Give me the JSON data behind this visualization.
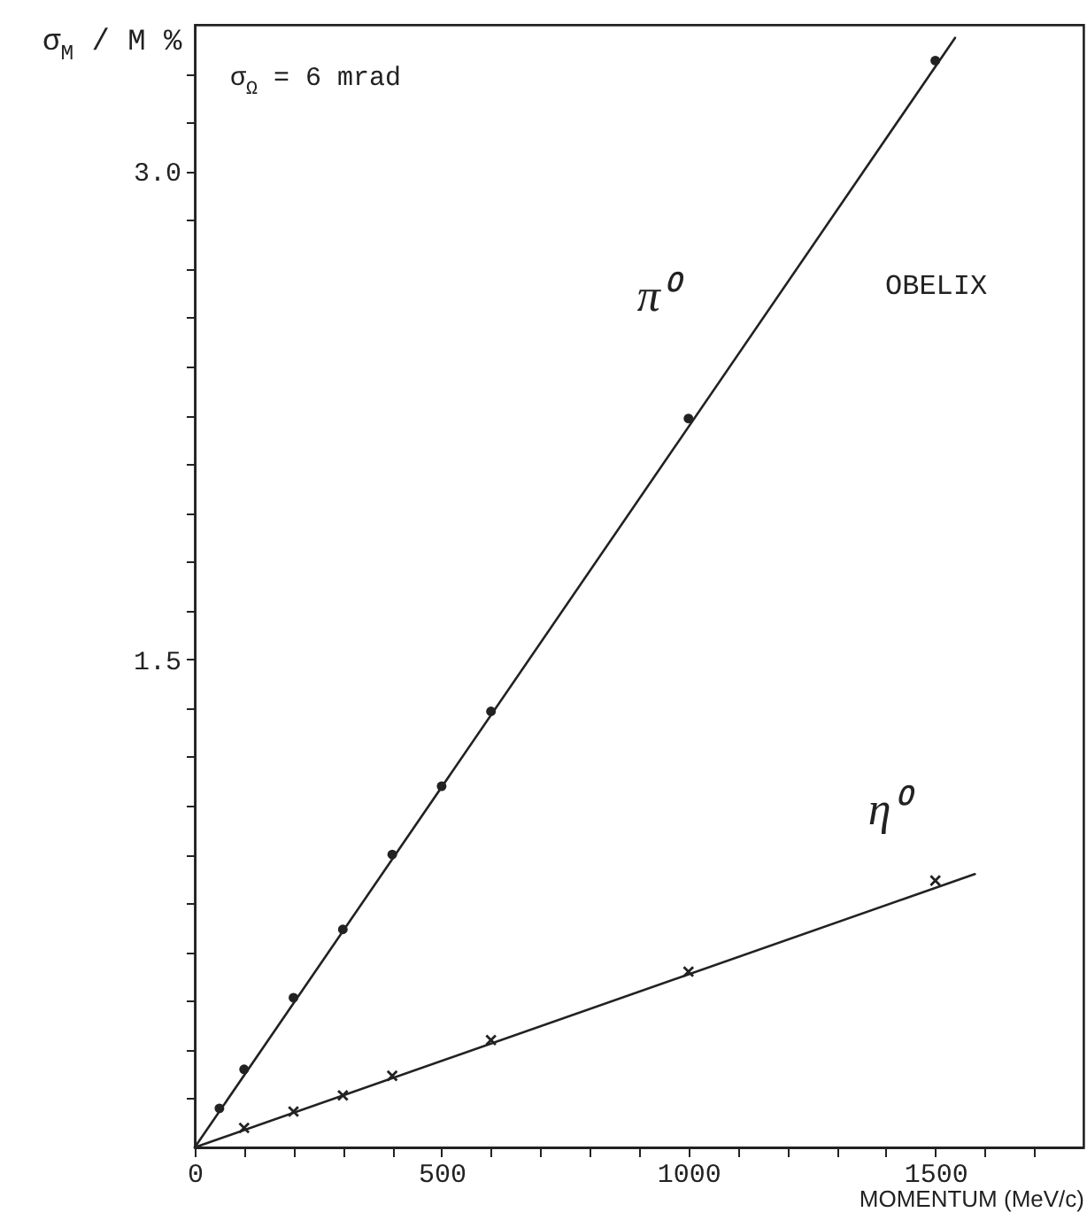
{
  "chart_data": {
    "type": "scatter",
    "xlabel": "MOMENTUM (MeV/c)",
    "ylabel": "σ$_{M}$ / M %",
    "annotations": [
      "σ$_{Ω}$ = 6 mrad",
      "OBELIX"
    ],
    "xlim": [
      0,
      1800
    ],
    "ylim": [
      0,
      3.45
    ],
    "xticks": [
      0,
      {
        "value": 100,
        "label": null
      },
      {
        "value": 200,
        "label": null
      },
      {
        "value": 300,
        "label": null
      },
      {
        "value": 400,
        "label": null
      },
      500,
      {
        "value": 600,
        "label": null
      },
      {
        "value": 700,
        "label": null
      },
      {
        "value": 800,
        "label": null
      },
      {
        "value": 900,
        "label": null
      },
      1000,
      {
        "value": 1100,
        "label": null
      },
      {
        "value": 1200,
        "label": null
      },
      {
        "value": 1300,
        "label": null
      },
      {
        "value": 1400,
        "label": null
      },
      1500,
      {
        "value": 1600,
        "label": null
      },
      {
        "value": 1700,
        "label": null
      }
    ],
    "yticks": [
      {
        "value": 0.15,
        "label": null
      },
      {
        "value": 0.3,
        "label": null
      },
      {
        "value": 0.45,
        "label": null
      },
      {
        "value": 0.6,
        "label": null
      },
      {
        "value": 0.75,
        "label": null
      },
      {
        "value": 0.9,
        "label": null
      },
      {
        "value": 1.05,
        "label": null
      },
      {
        "value": 1.2,
        "label": null
      },
      {
        "value": 1.35,
        "label": null
      },
      1.5,
      {
        "value": 1.65,
        "label": null
      },
      {
        "value": 1.8,
        "label": null
      },
      {
        "value": 1.95,
        "label": null
      },
      {
        "value": 2.1,
        "label": null
      },
      {
        "value": 2.25,
        "label": null
      },
      {
        "value": 2.4,
        "label": null
      },
      {
        "value": 2.55,
        "label": null
      },
      {
        "value": 2.7,
        "label": null
      },
      {
        "value": 2.85,
        "label": null
      },
      {
        "value": 3.0,
        "label": "3.0"
      },
      {
        "value": 3.15,
        "label": null
      },
      {
        "value": 3.3,
        "label": null
      }
    ],
    "grid": false,
    "series": [
      {
        "type": "line",
        "color": "#222222",
        "line_style": "solid",
        "x": [
          0,
          1540
        ],
        "values": [
          0,
          3.41
        ]
      },
      {
        "type": "line",
        "color": "#222222",
        "line_style": "solid",
        "x": [
          0,
          1580
        ],
        "values": [
          0,
          0.84
        ]
      },
      {
        "name": "π⁰",
        "marker": "circle",
        "color": "#222222",
        "x": [
          50,
          100,
          200,
          300,
          400,
          500,
          600,
          1000,
          1500
        ],
        "values": [
          0.12,
          0.24,
          0.46,
          0.67,
          0.9,
          1.11,
          1.34,
          2.24,
          3.34
        ]
      },
      {
        "name": "η⁰",
        "marker": "cross",
        "color": "#222222",
        "x": [
          100,
          200,
          300,
          400,
          600,
          1000,
          1500
        ],
        "values": [
          0.06,
          0.11,
          0.16,
          0.22,
          0.33,
          0.54,
          0.82
        ]
      }
    ]
  }
}
